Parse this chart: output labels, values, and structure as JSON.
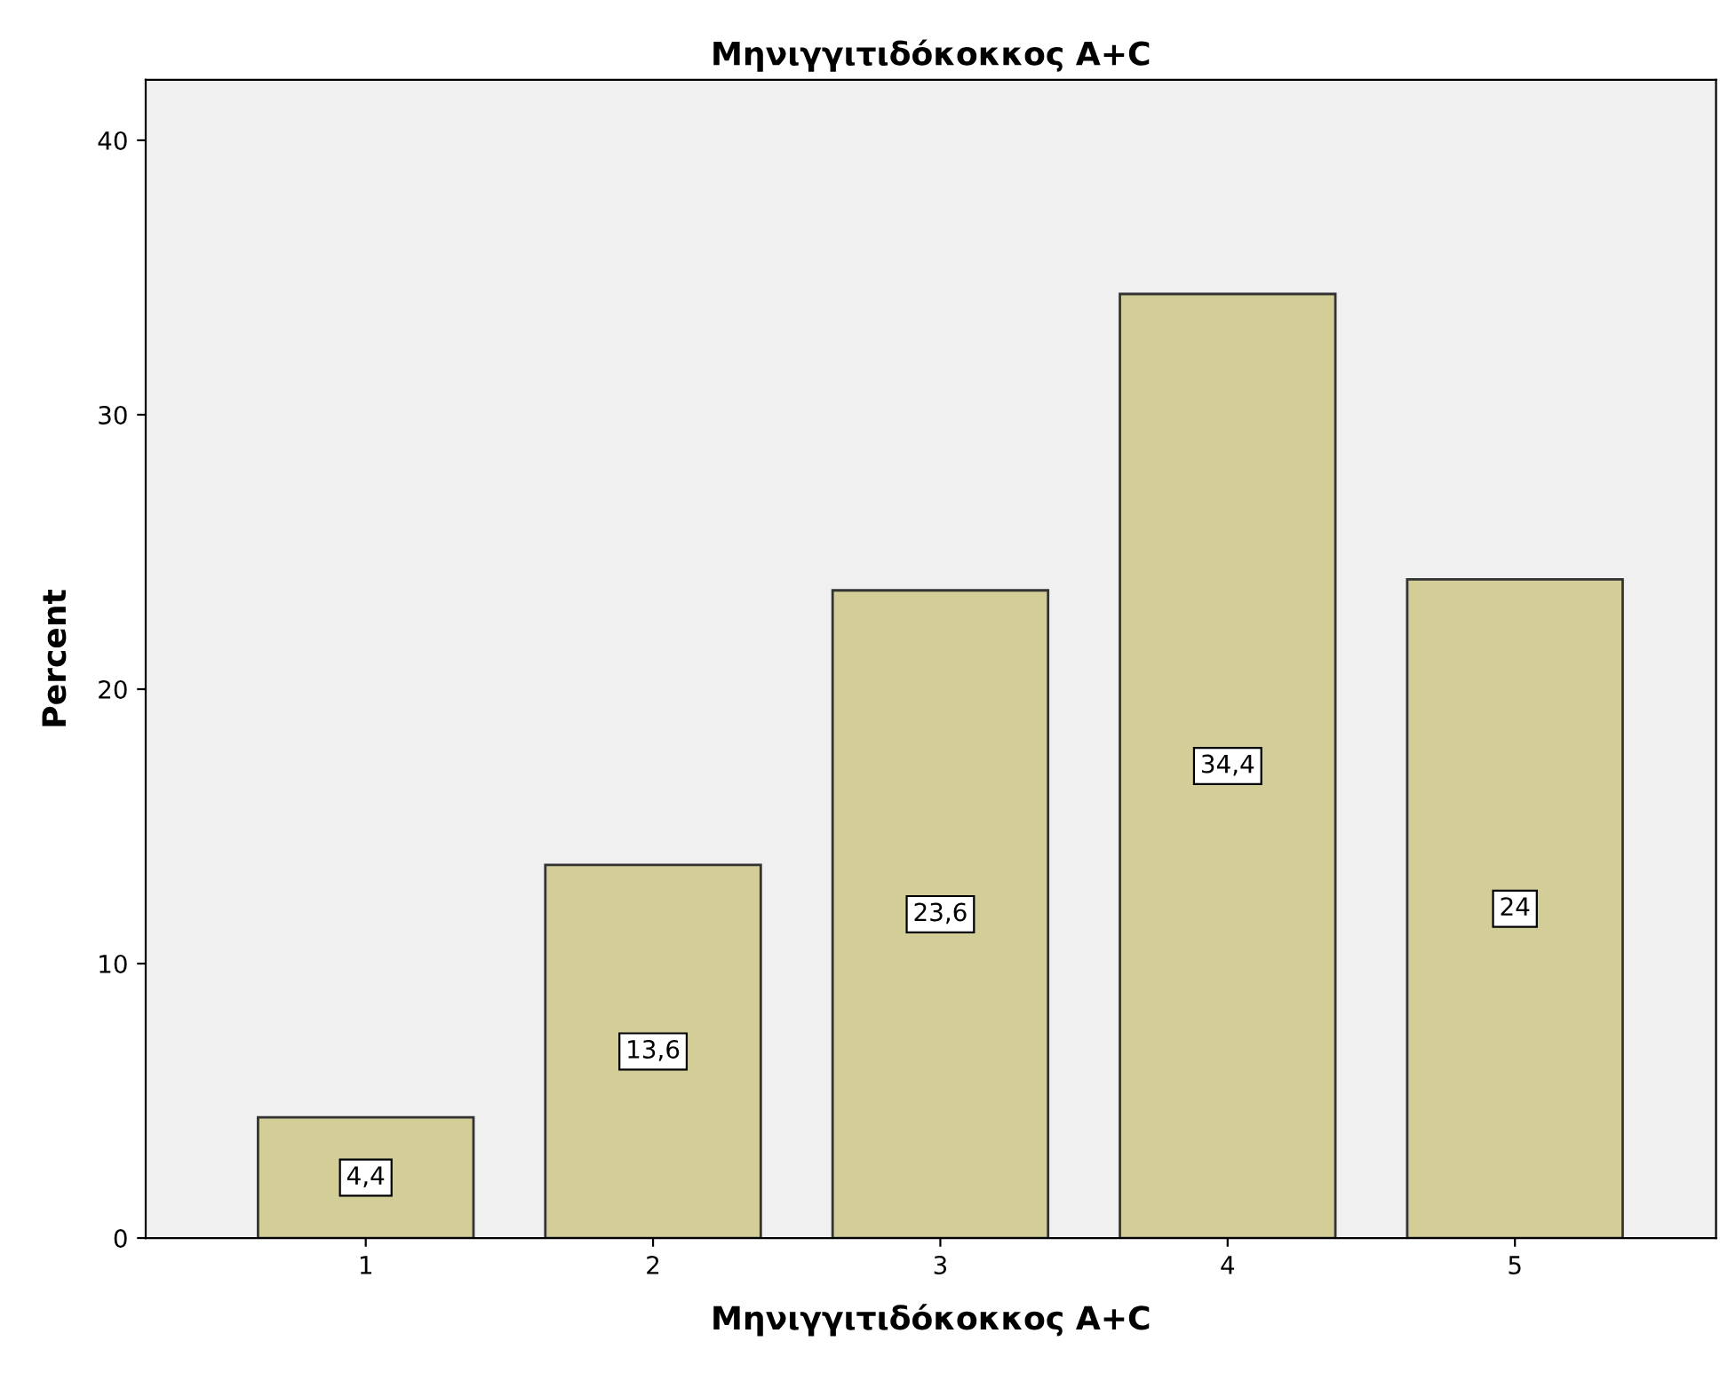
{
  "chart_data": {
    "type": "bar",
    "title": "Μηνιγγιτιδόκοκκος A+C",
    "xlabel": "Μηνιγγιτιδόκοκκος A+C",
    "ylabel": "Percent",
    "categories": [
      "1",
      "2",
      "3",
      "4",
      "5"
    ],
    "values": [
      4.4,
      13.6,
      23.6,
      34.4,
      24
    ],
    "value_labels": [
      "4,4",
      "13,6",
      "23,6",
      "34,4",
      "24"
    ],
    "color": "#d3ce98",
    "ylim": [
      0,
      42.2
    ],
    "yticks": [
      0,
      10,
      20,
      30,
      40
    ],
    "grid": false,
    "legend": false
  }
}
